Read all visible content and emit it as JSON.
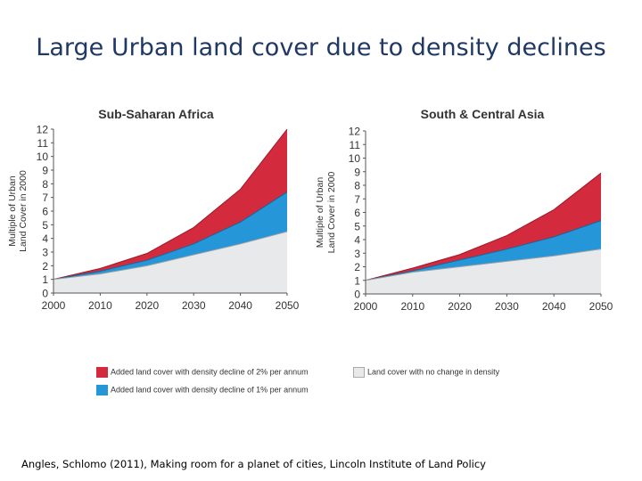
{
  "page": {
    "title": "Large Urban land cover due to density declines",
    "citation": "Angles, Schlomo (2011), Making room for a planet of cities, Lincoln Institute of Land Policy"
  },
  "colors": {
    "red": "#d42a3e",
    "blue": "#2596d7",
    "gray": "#e8e9ea",
    "line_red": "#9b1b2a",
    "line_blue": "#13679a",
    "line_gray": "#9aa0a6"
  },
  "legend": {
    "items": [
      {
        "label": "Added land cover with density decline of 2% per annum",
        "color": "#d42a3e"
      },
      {
        "label": "Added land cover with density decline of 1% per annum",
        "color": "#2596d7"
      },
      {
        "label": "Land cover with no change in density",
        "color": "#e8e9ea"
      }
    ]
  },
  "chart_data": [
    {
      "type": "area",
      "title": "Sub-Saharan Africa",
      "ylabel": "Multiple of Urban Land Cover in 2000",
      "xlabel": "",
      "x": [
        2000,
        2010,
        2020,
        2030,
        2040,
        2050
      ],
      "xlim": [
        2000,
        2050
      ],
      "ylim": [
        0,
        12
      ],
      "yticks": [
        0,
        1,
        2,
        3,
        4,
        5,
        6,
        7,
        8,
        9,
        10,
        11,
        12
      ],
      "grid": false,
      "series": [
        {
          "name": "Land cover with no change in density",
          "values": [
            1,
            1.4,
            2.0,
            2.8,
            3.6,
            4.5
          ]
        },
        {
          "name": "Added land cover with density decline of 1% per annum",
          "values": [
            1,
            1.6,
            2.4,
            3.6,
            5.2,
            7.4
          ]
        },
        {
          "name": "Added land cover with density decline of 2% per annum",
          "values": [
            1,
            1.8,
            2.9,
            4.8,
            7.6,
            12.0
          ]
        }
      ]
    },
    {
      "type": "area",
      "title": "South & Central Asia",
      "ylabel": "Multiple of Urban Land Cover in 2000",
      "xlabel": "",
      "x": [
        2000,
        2010,
        2020,
        2030,
        2040,
        2050
      ],
      "xlim": [
        2000,
        2050
      ],
      "ylim": [
        0,
        12
      ],
      "yticks": [
        0,
        1,
        2,
        3,
        4,
        5,
        6,
        7,
        8,
        9,
        10,
        11,
        12
      ],
      "grid": false,
      "series": [
        {
          "name": "Land cover with no change in density",
          "values": [
            1,
            1.6,
            2.0,
            2.4,
            2.8,
            3.3
          ]
        },
        {
          "name": "Added land cover with density decline of 1% per annum",
          "values": [
            1,
            1.7,
            2.5,
            3.3,
            4.2,
            5.4
          ]
        },
        {
          "name": "Added land cover with density decline of 2% per annum",
          "values": [
            1,
            1.9,
            2.9,
            4.3,
            6.2,
            8.9
          ]
        }
      ]
    }
  ]
}
